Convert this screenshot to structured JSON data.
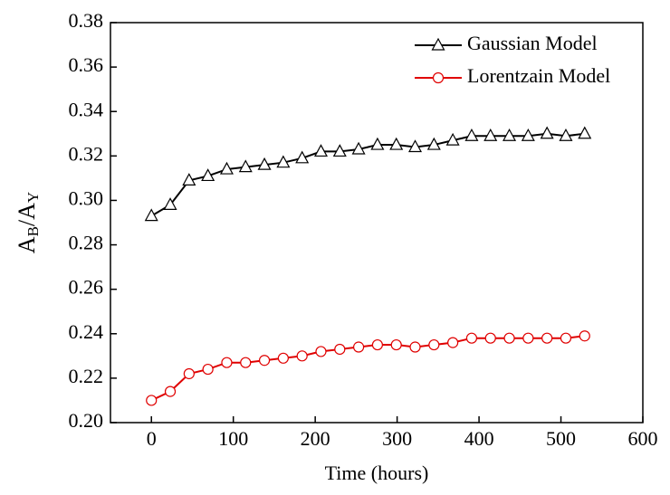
{
  "chart_data": {
    "type": "line",
    "x_label": "Time (hours)",
    "y_label": [
      "A",
      "B",
      "/A",
      "Y"
    ],
    "x": [
      0,
      23,
      46,
      69,
      92,
      115,
      138,
      161,
      184,
      207,
      230,
      253,
      276,
      299,
      322,
      345,
      368,
      391,
      414,
      437,
      460,
      483,
      506,
      529
    ],
    "series": [
      {
        "name": "Gaussian Model",
        "color": "#000000",
        "marker": "triangle",
        "values": [
          0.293,
          0.298,
          0.309,
          0.311,
          0.314,
          0.315,
          0.316,
          0.317,
          0.319,
          0.322,
          0.322,
          0.323,
          0.325,
          0.325,
          0.324,
          0.325,
          0.327,
          0.329,
          0.329,
          0.329,
          0.329,
          0.33,
          0.329,
          0.33
        ]
      },
      {
        "name": "Lorentzain Model",
        "color": "#e00000",
        "marker": "circle",
        "values": [
          0.21,
          0.214,
          0.222,
          0.224,
          0.227,
          0.227,
          0.228,
          0.229,
          0.23,
          0.232,
          0.233,
          0.234,
          0.235,
          0.235,
          0.234,
          0.235,
          0.236,
          0.238,
          0.238,
          0.238,
          0.238,
          0.238,
          0.238,
          0.239
        ]
      }
    ],
    "xlim": [
      -50,
      600
    ],
    "xticks": [
      0,
      100,
      200,
      300,
      400,
      500,
      600
    ],
    "ylim": [
      0.2,
      0.38
    ],
    "yticks": [
      {
        "value": 0.2,
        "label": "0.20"
      },
      0.22,
      0.24,
      0.26,
      0.28,
      {
        "value": 0.3,
        "label": "0.30"
      },
      0.32,
      0.34,
      0.36,
      0.38
    ],
    "legend": "upper right"
  }
}
